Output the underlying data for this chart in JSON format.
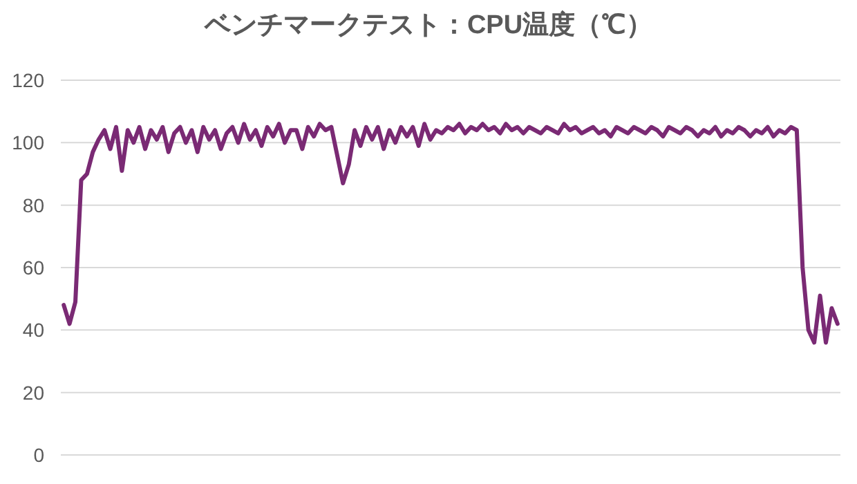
{
  "chart_data": {
    "type": "line",
    "title": "ベンチマークテスト：CPU温度（℃）",
    "categories": [
      null,
      null,
      null,
      null,
      null,
      null,
      null,
      null,
      null,
      null,
      null,
      null,
      null,
      null,
      null,
      null,
      null,
      null,
      null,
      null,
      null,
      null,
      null,
      null,
      null,
      null,
      null,
      null,
      null,
      null,
      null,
      null,
      null,
      null,
      null,
      null,
      null,
      null,
      null,
      null,
      null,
      null,
      null,
      null,
      null,
      null,
      null,
      null,
      null,
      null,
      null,
      null,
      null,
      null,
      null,
      null,
      null,
      null,
      null,
      null,
      null,
      null,
      null,
      null,
      null,
      null,
      null,
      null,
      null,
      null,
      null,
      null,
      null,
      null,
      null,
      null,
      null,
      null,
      null,
      null,
      null,
      null,
      null,
      null,
      null,
      null,
      null,
      null,
      null,
      null,
      null,
      null,
      null,
      null,
      null,
      null,
      null,
      null,
      null,
      null,
      null,
      null,
      null,
      null,
      null,
      null,
      null,
      null,
      null,
      null,
      null,
      null,
      null,
      null,
      null,
      null,
      null,
      null,
      null,
      null,
      null,
      null,
      null,
      null,
      null,
      null,
      null,
      null,
      null,
      null,
      null,
      null,
      null,
      null
    ],
    "series": [
      {
        "color": "#7a2a74",
        "values": [
          48,
          42,
          49,
          88,
          90,
          97,
          101,
          104,
          98,
          105,
          91,
          104,
          100,
          105,
          98,
          104,
          101,
          105,
          97,
          103,
          105,
          100,
          104,
          97,
          105,
          101,
          104,
          98,
          103,
          105,
          100,
          106,
          101,
          104,
          99,
          105,
          102,
          106,
          100,
          104,
          104,
          98,
          105,
          102,
          106,
          104,
          105,
          96,
          87,
          93,
          104,
          99,
          105,
          101,
          105,
          98,
          104,
          100,
          105,
          102,
          105,
          99,
          106,
          101,
          104,
          103,
          105,
          104,
          106,
          103,
          105,
          104,
          106,
          104,
          105,
          103,
          106,
          104,
          105,
          103,
          105,
          104,
          103,
          105,
          104,
          103,
          106,
          104,
          105,
          103,
          104,
          105,
          103,
          104,
          102,
          105,
          104,
          103,
          105,
          104,
          103,
          105,
          104,
          102,
          105,
          104,
          103,
          105,
          104,
          102,
          104,
          103,
          105,
          102,
          104,
          103,
          105,
          104,
          102,
          104,
          103,
          105,
          102,
          104,
          103,
          105,
          104,
          60,
          40,
          36,
          51,
          36,
          47,
          42
        ]
      }
    ],
    "ylim": [
      0,
      120
    ],
    "yticks": [
      0,
      20,
      40,
      60,
      80,
      100,
      120
    ],
    "grid": "y",
    "line_style": "solid"
  }
}
